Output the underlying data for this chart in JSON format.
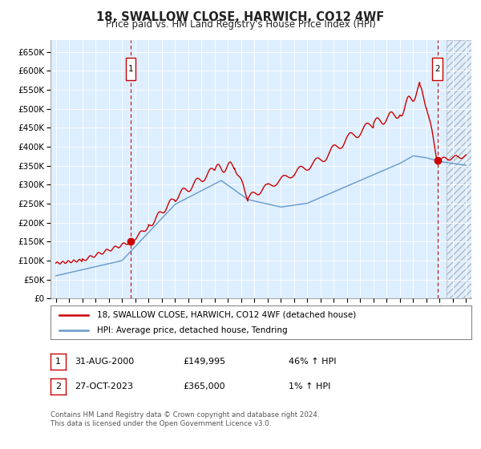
{
  "title": "18, SWALLOW CLOSE, HARWICH, CO12 4WF",
  "subtitle": "Price paid vs. HM Land Registry's House Price Index (HPI)",
  "ylim": [
    0,
    680000
  ],
  "yticks": [
    0,
    50000,
    100000,
    150000,
    200000,
    250000,
    300000,
    350000,
    400000,
    450000,
    500000,
    550000,
    600000,
    650000
  ],
  "xlim_start": 1994.6,
  "xlim_end": 2026.4,
  "sale1_x": 2000.667,
  "sale1_y": 149995,
  "sale1_label": "1",
  "sale1_date": "31-AUG-2000",
  "sale1_price": "£149,995",
  "sale1_hpi": "46% ↑ HPI",
  "sale2_x": 2023.833,
  "sale2_y": 365000,
  "sale2_label": "2",
  "sale2_date": "27-OCT-2023",
  "sale2_price": "£365,000",
  "sale2_hpi": "1% ↑ HPI",
  "legend_line1": "18, SWALLOW CLOSE, HARWICH, CO12 4WF (detached house)",
  "legend_line2": "HPI: Average price, detached house, Tendring",
  "footer1": "Contains HM Land Registry data © Crown copyright and database right 2024.",
  "footer2": "This data is licensed under the Open Government Licence v3.0.",
  "line_red_color": "#cc0000",
  "line_blue_color": "#6699cc",
  "bg_color": "#ddeeff",
  "box_color": "#cc0000",
  "hatch_start": 2024.5
}
